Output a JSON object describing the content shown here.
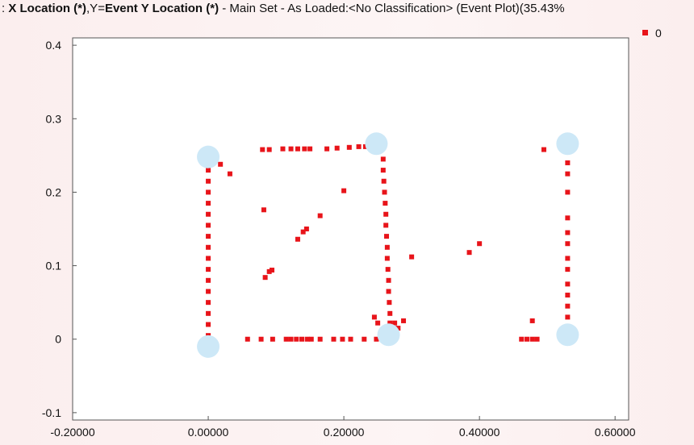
{
  "window": {
    "title_prefix": ": ",
    "title_x_bold": "X Location (*)",
    "title_sep": ",Y=",
    "title_y_bold": "Event Y Location (*)",
    "title_rest": " - Main Set - As Loaded:<No Classification> (Event Plot)(35.43%"
  },
  "colors": {
    "series": "#e8141a",
    "marker_circle": "#cde8f7",
    "plot_bg": "#ffffff",
    "page_bg": "#fbeeee"
  },
  "chart_data": {
    "type": "scatter",
    "title": "",
    "xlabel": "",
    "ylabel": "",
    "xlim": [
      -0.2,
      0.62
    ],
    "ylim": [
      -0.11,
      0.41
    ],
    "x_ticks": [
      -0.2,
      0.0,
      0.2,
      0.4,
      0.6
    ],
    "x_tick_labels": [
      "-0.20000",
      "0.00000",
      "0.20000",
      "0.40000",
      "0.60000"
    ],
    "y_ticks": [
      -0.1,
      0.0,
      0.1,
      0.2,
      0.3,
      0.4
    ],
    "y_tick_labels": [
      "-0.1",
      "0",
      "0.1",
      "0.2",
      "0.3",
      "0.4"
    ],
    "grid": false,
    "legend": {
      "position": "top-right",
      "entries": [
        "0"
      ]
    },
    "series": [
      {
        "name": "0",
        "points": [
          [
            0.0,
            0.005
          ],
          [
            0.0,
            0.02
          ],
          [
            0.0,
            0.035
          ],
          [
            0.0,
            0.05
          ],
          [
            0.0,
            0.065
          ],
          [
            0.0,
            0.08
          ],
          [
            0.0,
            0.095
          ],
          [
            0.0,
            0.11
          ],
          [
            0.0,
            0.125
          ],
          [
            0.0,
            0.14
          ],
          [
            0.0,
            0.155
          ],
          [
            0.0,
            0.17
          ],
          [
            0.0,
            0.185
          ],
          [
            0.0,
            0.2
          ],
          [
            0.0,
            0.215
          ],
          [
            0.0,
            0.23
          ],
          [
            0.002,
            0.242
          ],
          [
            0.018,
            0.238
          ],
          [
            0.032,
            0.225
          ],
          [
            0.058,
            0.0
          ],
          [
            0.078,
            0.0
          ],
          [
            0.095,
            0.0
          ],
          [
            0.115,
            0.0
          ],
          [
            0.122,
            0.0
          ],
          [
            0.13,
            0.0
          ],
          [
            0.138,
            0.0
          ],
          [
            0.146,
            0.0
          ],
          [
            0.152,
            0.0
          ],
          [
            0.165,
            0.0
          ],
          [
            0.185,
            0.0
          ],
          [
            0.198,
            0.0
          ],
          [
            0.21,
            0.0
          ],
          [
            0.23,
            0.0
          ],
          [
            0.248,
            0.0
          ],
          [
            0.08,
            0.258
          ],
          [
            0.09,
            0.258
          ],
          [
            0.11,
            0.259
          ],
          [
            0.122,
            0.259
          ],
          [
            0.132,
            0.259
          ],
          [
            0.142,
            0.259
          ],
          [
            0.15,
            0.259
          ],
          [
            0.175,
            0.259
          ],
          [
            0.19,
            0.26
          ],
          [
            0.208,
            0.261
          ],
          [
            0.222,
            0.262
          ],
          [
            0.232,
            0.262
          ],
          [
            0.082,
            0.176
          ],
          [
            0.084,
            0.084
          ],
          [
            0.09,
            0.092
          ],
          [
            0.094,
            0.094
          ],
          [
            0.132,
            0.136
          ],
          [
            0.14,
            0.146
          ],
          [
            0.145,
            0.15
          ],
          [
            0.165,
            0.168
          ],
          [
            0.2,
            0.202
          ],
          [
            0.258,
            0.245
          ],
          [
            0.258,
            0.23
          ],
          [
            0.259,
            0.215
          ],
          [
            0.26,
            0.2
          ],
          [
            0.261,
            0.185
          ],
          [
            0.262,
            0.17
          ],
          [
            0.262,
            0.155
          ],
          [
            0.263,
            0.14
          ],
          [
            0.264,
            0.125
          ],
          [
            0.264,
            0.11
          ],
          [
            0.265,
            0.095
          ],
          [
            0.266,
            0.08
          ],
          [
            0.266,
            0.065
          ],
          [
            0.267,
            0.05
          ],
          [
            0.268,
            0.035
          ],
          [
            0.268,
            0.022
          ],
          [
            0.245,
            0.03
          ],
          [
            0.25,
            0.022
          ],
          [
            0.275,
            0.022
          ],
          [
            0.28,
            0.015
          ],
          [
            0.288,
            0.025
          ],
          [
            0.3,
            0.112
          ],
          [
            0.385,
            0.118
          ],
          [
            0.4,
            0.13
          ],
          [
            0.462,
            0.0
          ],
          [
            0.47,
            0.0
          ],
          [
            0.478,
            0.0
          ],
          [
            0.485,
            0.0
          ],
          [
            0.478,
            0.025
          ],
          [
            0.495,
            0.258
          ],
          [
            0.53,
            0.24
          ],
          [
            0.53,
            0.225
          ],
          [
            0.53,
            0.2
          ],
          [
            0.53,
            0.165
          ],
          [
            0.53,
            0.145
          ],
          [
            0.53,
            0.13
          ],
          [
            0.53,
            0.11
          ],
          [
            0.53,
            0.095
          ],
          [
            0.53,
            0.075
          ],
          [
            0.53,
            0.06
          ],
          [
            0.53,
            0.045
          ],
          [
            0.53,
            0.03
          ]
        ]
      }
    ],
    "highlight_markers": [
      [
        0.0,
        0.248
      ],
      [
        0.0,
        -0.01
      ],
      [
        0.248,
        0.266
      ],
      [
        0.266,
        0.006
      ],
      [
        0.53,
        0.266
      ],
      [
        0.53,
        0.006
      ]
    ]
  }
}
